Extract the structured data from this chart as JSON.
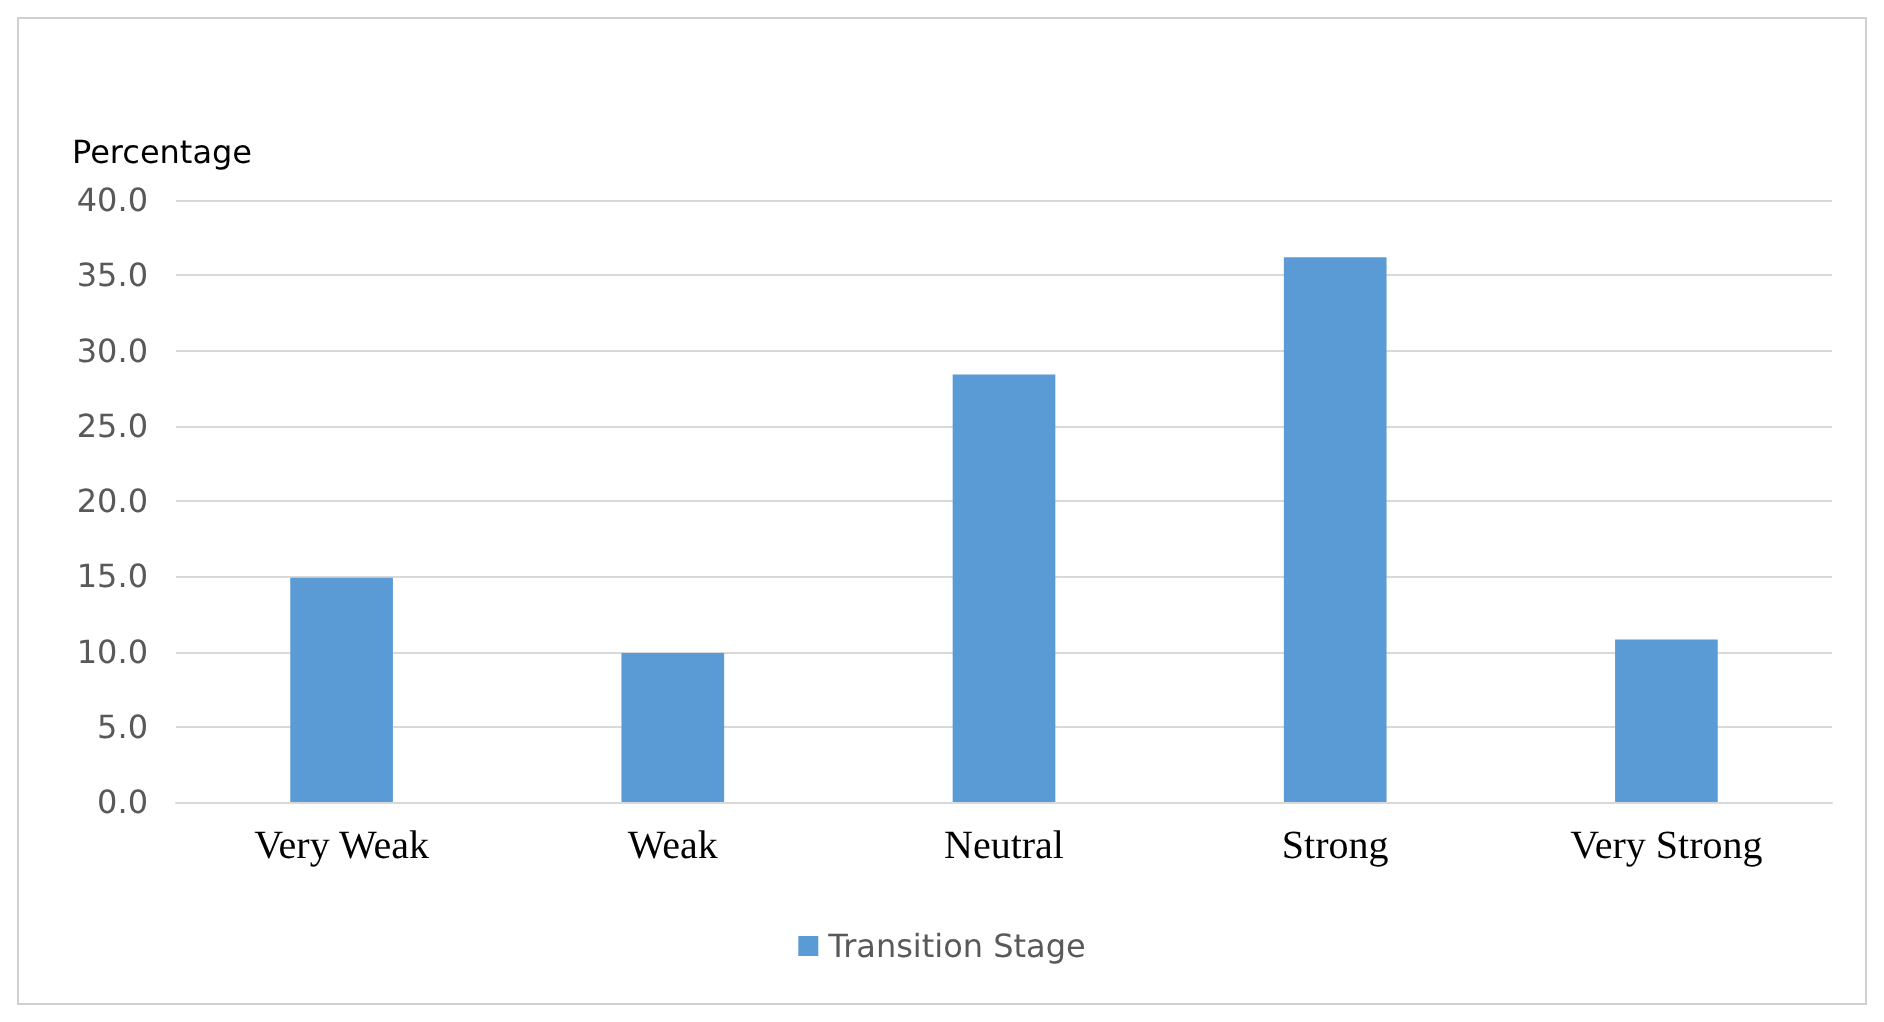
{
  "chart_data": {
    "type": "bar",
    "ylabel": "Percentage",
    "categories": [
      "Very Weak",
      "Weak",
      "Neutral",
      "Strong",
      "Very Strong"
    ],
    "series": [
      {
        "name": "Transition Stage",
        "color": "#5b9bd5",
        "values": [
          14.9,
          9.9,
          28.4,
          36.2,
          10.8
        ]
      }
    ],
    "ylim": [
      0,
      40
    ],
    "yticks": [
      {
        "value": 0,
        "label": "0.0"
      },
      {
        "value": 5,
        "label": "5.0"
      },
      {
        "value": 10,
        "label": "10.0"
      },
      {
        "value": 15,
        "label": "15.0"
      },
      {
        "value": 20,
        "label": "20.0"
      },
      {
        "value": 25,
        "label": "25.0"
      },
      {
        "value": 30,
        "label": "30.0"
      },
      {
        "value": 35,
        "label": "35.0"
      },
      {
        "value": 40,
        "label": "40.0"
      }
    ],
    "grid": "y",
    "legend": "bottom"
  }
}
